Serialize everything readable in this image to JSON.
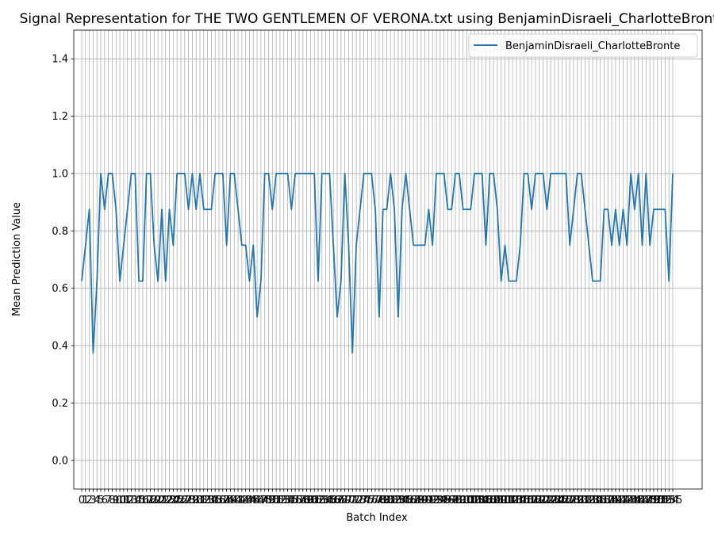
{
  "chart_data": {
    "type": "line",
    "title": "Signal Representation for THE TWO GENTLEMEN OF VERONA.txt using BenjaminDisraeli_CharlotteBronte",
    "xlabel": "Batch Index",
    "ylabel": "Mean Prediction Value",
    "ylim": [
      -0.1,
      1.5
    ],
    "yticks": [
      0.0,
      0.2,
      0.4,
      0.6,
      0.8,
      1.0,
      1.2,
      1.4
    ],
    "grid": true,
    "legend": "top-right",
    "series": [
      {
        "name": "BenjaminDisraeli_CharlotteBronte",
        "color": "#1f77b4",
        "values": [
          0.625,
          0.75,
          0.875,
          0.375,
          0.625,
          1.0,
          0.875,
          1.0,
          1.0,
          0.875,
          0.625,
          0.75,
          0.875,
          1.0,
          1.0,
          0.625,
          0.625,
          1.0,
          1.0,
          0.75,
          0.625,
          0.875,
          0.625,
          0.875,
          0.75,
          1.0,
          1.0,
          1.0,
          0.875,
          1.0,
          0.875,
          1.0,
          0.875,
          0.875,
          0.875,
          1.0,
          1.0,
          1.0,
          0.75,
          1.0,
          1.0,
          0.875,
          0.75,
          0.75,
          0.625,
          0.75,
          0.5,
          0.625,
          1.0,
          1.0,
          0.875,
          1.0,
          1.0,
          1.0,
          1.0,
          0.875,
          1.0,
          1.0,
          1.0,
          1.0,
          1.0,
          1.0,
          0.625,
          1.0,
          1.0,
          1.0,
          0.75,
          0.5,
          0.625,
          1.0,
          0.75,
          0.375,
          0.75,
          0.875,
          1.0,
          1.0,
          1.0,
          0.875,
          0.5,
          0.875,
          0.875,
          1.0,
          0.875,
          0.5,
          0.875,
          1.0,
          0.875,
          0.75,
          0.75,
          0.75,
          0.75,
          0.875,
          0.75,
          1.0,
          1.0,
          1.0,
          0.875,
          0.875,
          1.0,
          1.0,
          0.875,
          0.875,
          0.875,
          1.0,
          1.0,
          1.0,
          0.75,
          1.0,
          1.0,
          0.875,
          0.625,
          0.75,
          0.625,
          0.625,
          0.625,
          0.75,
          1.0,
          1.0,
          0.875,
          1.0,
          1.0,
          1.0,
          0.875,
          1.0,
          1.0,
          1.0,
          1.0,
          1.0,
          0.75,
          0.875,
          1.0,
          1.0,
          0.875,
          0.75,
          0.625,
          0.625,
          0.625,
          0.875,
          0.875,
          0.75,
          0.875,
          0.75,
          0.875,
          0.75,
          1.0,
          0.875,
          1.0,
          0.75,
          1.0,
          0.75,
          0.875,
          0.875,
          0.875,
          0.875,
          0.625,
          1.0
        ]
      }
    ]
  }
}
